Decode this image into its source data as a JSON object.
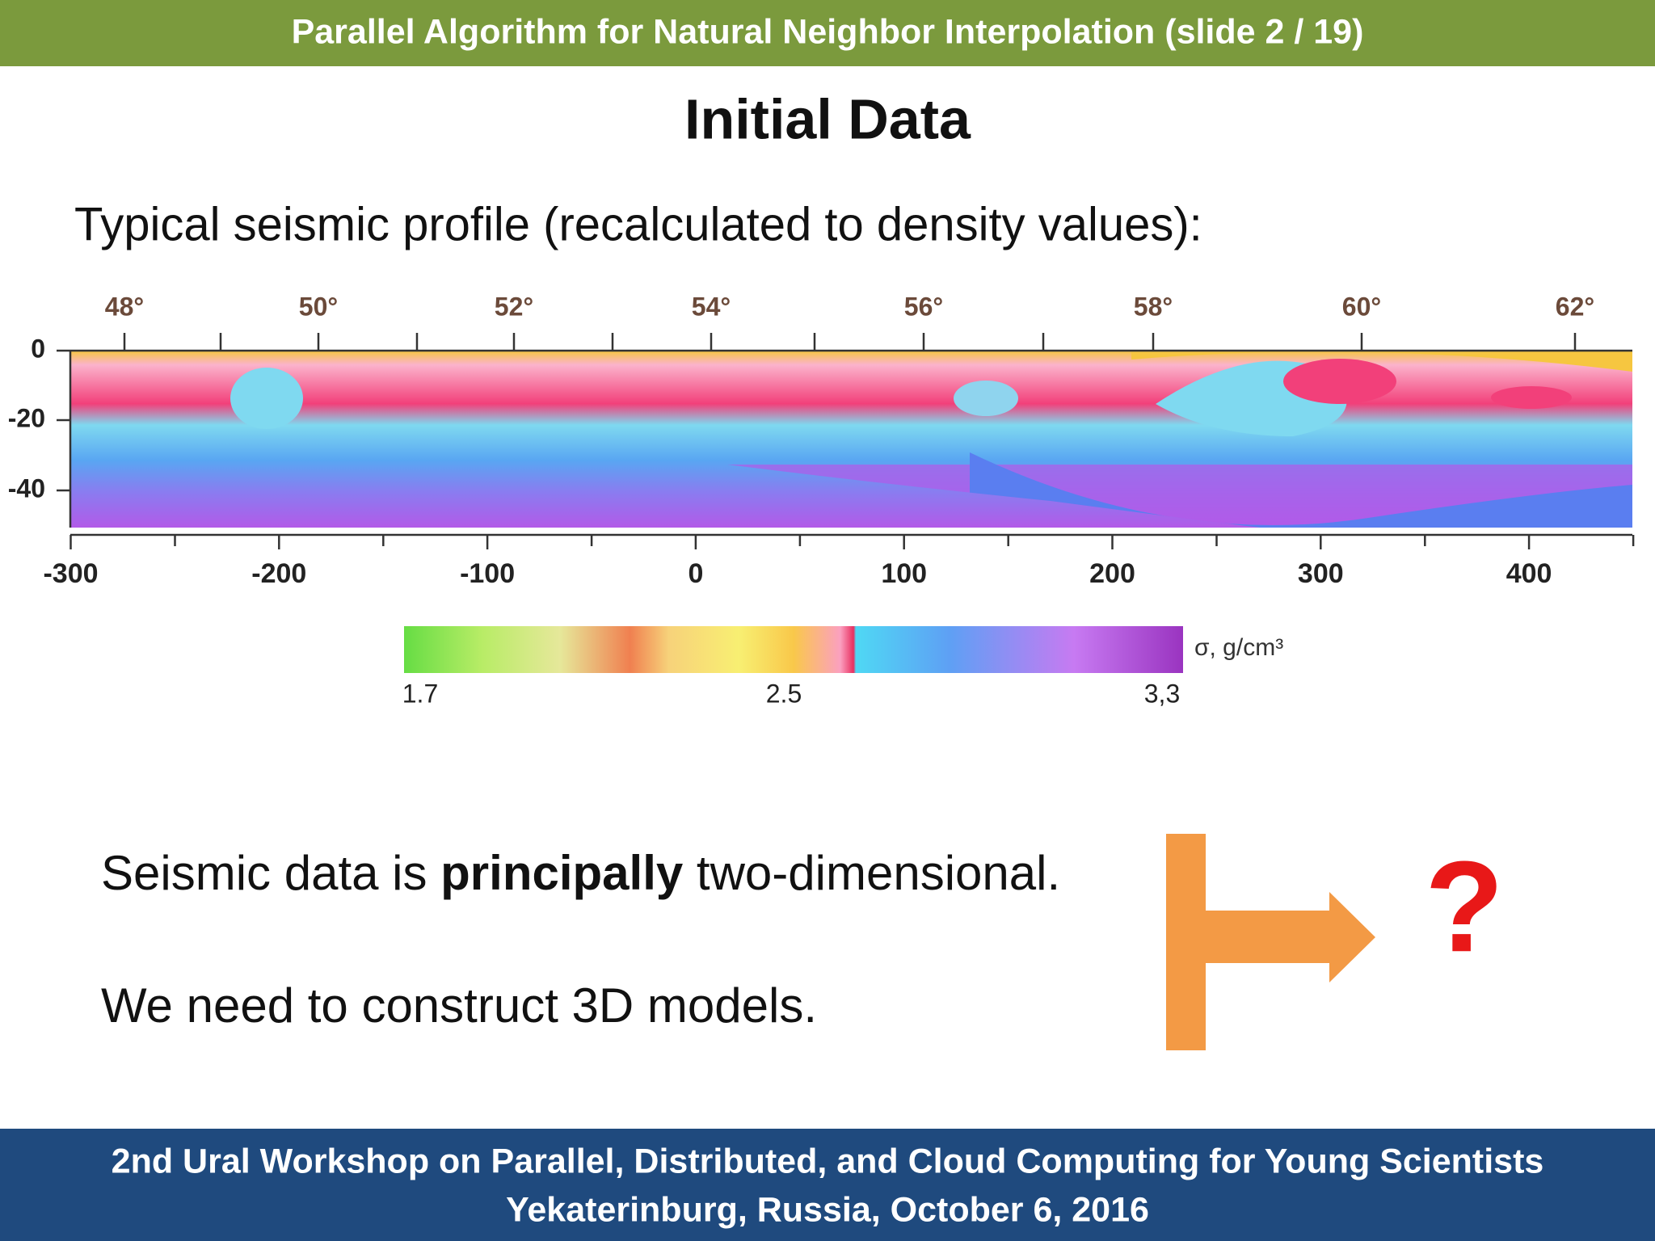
{
  "header": {
    "title": "Parallel Algorithm for Natural Neighbor Interpolation (slide 2 / 19)"
  },
  "slide": {
    "title": "Initial Data",
    "subtitle": "Typical seismic profile (recalculated to density values):"
  },
  "figure": {
    "top_ticks": [
      "48°",
      "50°",
      "52°",
      "54°",
      "56°",
      "58°",
      "60°",
      "62°"
    ],
    "left_ticks": [
      "0",
      "-20",
      "-40"
    ],
    "bottom_ticks": [
      "-300",
      "-200",
      "-100",
      "0",
      "100",
      "200",
      "300",
      "400"
    ],
    "colorbar_ticks": [
      "1.7",
      "2.5",
      "3,3"
    ],
    "colorbar_unit": "σ, g/cm³"
  },
  "body": {
    "line1": [
      "Seismic data is ",
      "principally",
      " two-dimensional."
    ],
    "line2": "We need to construct 3D models.",
    "question": "?"
  },
  "footer": {
    "line1": "2nd Ural Workshop on Parallel, Distributed, and Cloud Computing for Young Scientists",
    "line2": "Yekaterinburg, Russia, October 6, 2016"
  }
}
